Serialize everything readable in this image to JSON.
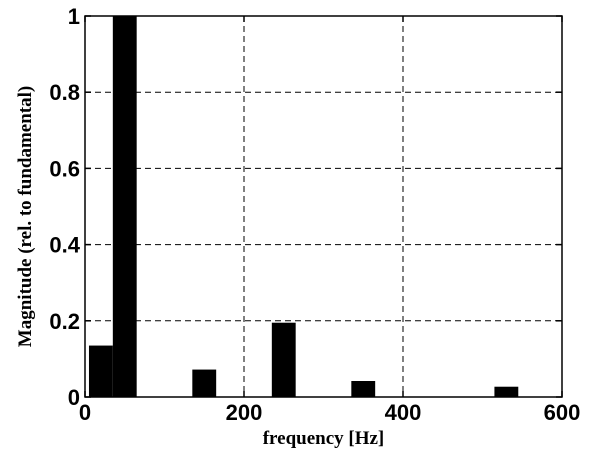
{
  "chart_data": {
    "type": "bar",
    "x": [
      20,
      50,
      150,
      250,
      350,
      530
    ],
    "values": [
      0.135,
      1.0,
      0.072,
      0.195,
      0.042,
      0.027
    ],
    "xlabel": "frequency [Hz]",
    "ylabel": "Magnitude (rel. to fundamental)",
    "xlim": [
      0,
      600
    ],
    "ylim": [
      0,
      1
    ],
    "xticks": [
      0,
      200,
      400,
      600
    ],
    "yticks": [
      0,
      0.2,
      0.4,
      0.6,
      0.8,
      1
    ],
    "xtick_labels": [
      "0",
      "200",
      "400",
      "600"
    ],
    "ytick_labels": [
      "0",
      "0.2",
      "0.4",
      "0.6",
      "0.8",
      "1"
    ],
    "bar_width": 30,
    "grid": true,
    "grid_style": "dashed",
    "bar_color": "#000000"
  }
}
